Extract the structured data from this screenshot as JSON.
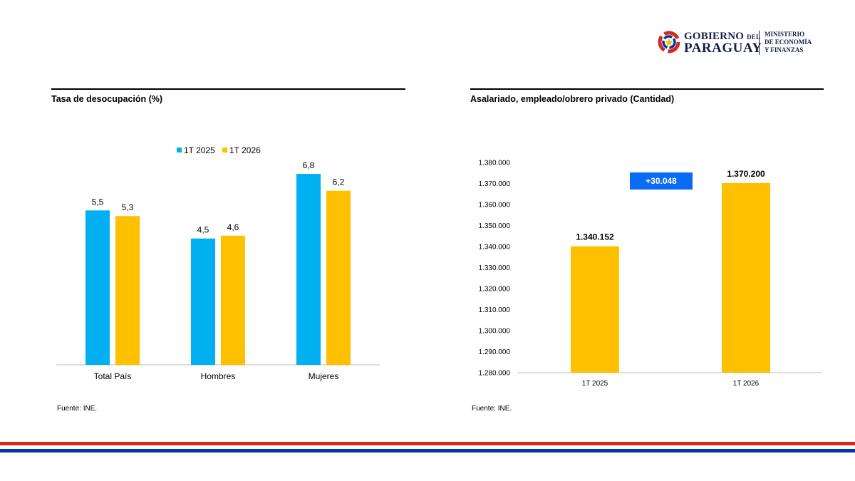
{
  "header": {
    "logo_line1": "GOBIERNO",
    "logo_line1_small": "DEL",
    "logo_line2": "PARAGUAY",
    "ministry": "MINISTERIO\nDE ECONOMÍA\nY FINANZAS"
  },
  "left_panel": {
    "title": "Tasa de desocupación (%)",
    "source": "Fuente:  INE."
  },
  "right_panel": {
    "title": "Asalariado, empleado/obrero privado (Cantidad)",
    "source": "Fuente:  INE.",
    "delta_label": "+30.048"
  },
  "colors": {
    "series_2025": "#00B0F0",
    "series_2026": "#FFC000",
    "delta_box": "#0A6CF5",
    "flag_red": "#D52B1E",
    "flag_blue": "#0038A8"
  },
  "chart_data": [
    {
      "type": "bar",
      "title": "Tasa de desocupación (%)",
      "categories": [
        "Total País",
        "Hombres",
        "Mujeres"
      ],
      "series": [
        {
          "name": "1T 2025",
          "values": [
            5.5,
            4.5,
            6.8
          ],
          "labels": [
            "5,5",
            "4,5",
            "6,8"
          ],
          "color": "#00B0F0"
        },
        {
          "name": "1T 2026",
          "values": [
            5.3,
            4.6,
            6.2
          ],
          "labels": [
            "5,3",
            "4,6",
            "6,2"
          ],
          "color": "#FFC000"
        }
      ],
      "ylim": [
        0,
        8
      ],
      "legend": "top-center",
      "grid": false
    },
    {
      "type": "bar",
      "title": "Asalariado, empleado/obrero privado (Cantidad)",
      "categories": [
        "1T 2025",
        "1T 2026"
      ],
      "values": [
        1340152,
        1370200
      ],
      "labels": [
        "1.340.152",
        "1.370.200"
      ],
      "color": "#FFC000",
      "ylim": [
        1280000,
        1380000
      ],
      "yticks": [
        {
          "value": 1280000,
          "label": "1.280.000"
        },
        {
          "value": 1290000,
          "label": "1.290.000"
        },
        {
          "value": 1300000,
          "label": "1.300.000"
        },
        {
          "value": 1310000,
          "label": "1.310.000"
        },
        {
          "value": 1320000,
          "label": "1.320.000"
        },
        {
          "value": 1330000,
          "label": "1.330.000"
        },
        {
          "value": 1340000,
          "label": "1.340.000"
        },
        {
          "value": 1350000,
          "label": "1.350.000"
        },
        {
          "value": 1360000,
          "label": "1.360.000"
        },
        {
          "value": 1370000,
          "label": "1.370.000"
        },
        {
          "value": 1380000,
          "label": "1.380.000"
        }
      ],
      "annotation": "+30.048",
      "grid": false
    }
  ]
}
